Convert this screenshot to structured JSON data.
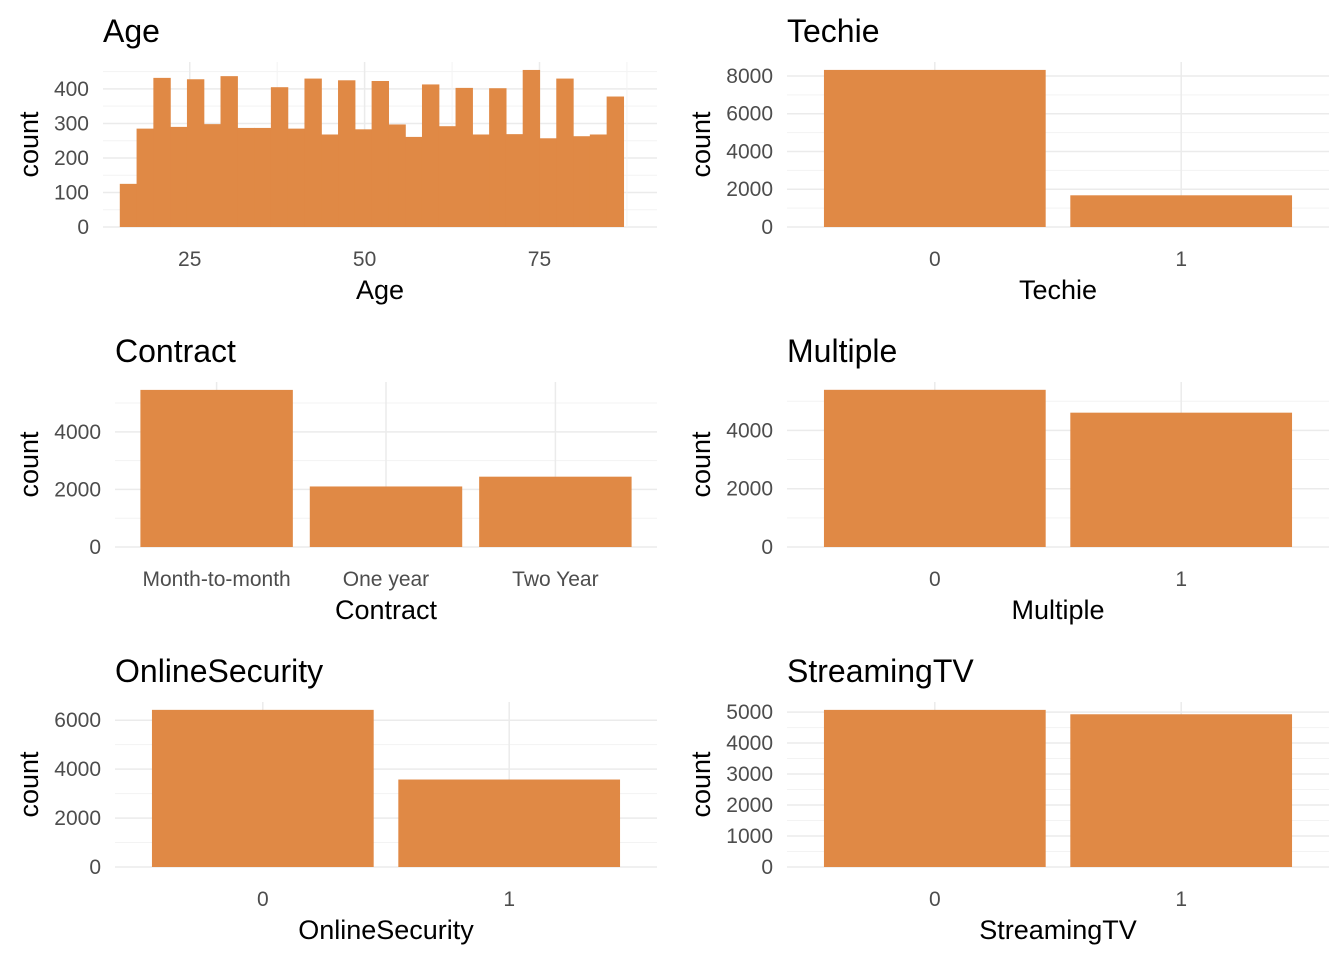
{
  "colors": {
    "bar": "#E08945",
    "grid_major": "#EBEBEB",
    "grid_minor": "#F3F3F3",
    "tick_text": "#4D4D4D",
    "text": "#000000"
  },
  "chart_data": [
    {
      "type": "bar",
      "title": "Age",
      "xlabel": "Age",
      "ylabel": "count",
      "binwidth": 2.4,
      "x": [
        16.2,
        18.6,
        21.0,
        23.4,
        25.8,
        28.2,
        30.6,
        33.0,
        35.4,
        37.8,
        40.2,
        42.6,
        45.0,
        47.4,
        49.8,
        52.2,
        54.6,
        57.0,
        59.4,
        61.8,
        64.2,
        66.6,
        69.0,
        71.4,
        73.8,
        76.2,
        78.6,
        81.0,
        83.4,
        85.8,
        88.2
      ],
      "values": [
        125,
        285,
        432,
        290,
        428,
        298,
        437,
        287,
        287,
        405,
        285,
        430,
        268,
        425,
        283,
        423,
        297,
        261,
        413,
        292,
        403,
        268,
        402,
        269,
        455,
        257,
        430,
        263,
        268,
        378,
        0
      ],
      "xticks": [
        25,
        50,
        75
      ],
      "xtick_labels": [
        "25",
        "50",
        "75"
      ],
      "yticks": [
        0,
        100,
        200,
        300,
        400
      ],
      "ytick_labels": [
        "0",
        "100",
        "200",
        "300",
        "400"
      ],
      "xlim": [
        12.6,
        91.8
      ],
      "ylim": [
        0,
        478
      ]
    },
    {
      "type": "bar",
      "title": "Techie",
      "xlabel": "Techie",
      "ylabel": "count",
      "categories": [
        "0",
        "1"
      ],
      "values": [
        8321,
        1679
      ],
      "yticks": [
        0,
        2000,
        4000,
        6000,
        8000
      ],
      "ytick_labels": [
        "0",
        "2000",
        "4000",
        "6000",
        "8000"
      ],
      "ylim": [
        0,
        8740
      ]
    },
    {
      "type": "bar",
      "title": "Contract",
      "xlabel": "Contract",
      "ylabel": "count",
      "categories": [
        "Month-to-month",
        "One year",
        "Two Year"
      ],
      "values": [
        5456,
        2102,
        2442
      ],
      "yticks": [
        0,
        2000,
        4000
      ],
      "ytick_labels": [
        "0",
        "2000",
        "4000"
      ],
      "ylim": [
        0,
        5730
      ]
    },
    {
      "type": "bar",
      "title": "Multiple",
      "xlabel": "Multiple",
      "ylabel": "count",
      "categories": [
        "0",
        "1"
      ],
      "values": [
        5392,
        4608
      ],
      "yticks": [
        0,
        2000,
        4000
      ],
      "ytick_labels": [
        "0",
        "2000",
        "4000"
      ],
      "ylim": [
        0,
        5660
      ]
    },
    {
      "type": "bar",
      "title": "OnlineSecurity",
      "xlabel": "OnlineSecurity",
      "ylabel": "count",
      "categories": [
        "0",
        "1"
      ],
      "values": [
        6424,
        3576
      ],
      "yticks": [
        0,
        2000,
        4000,
        6000
      ],
      "ytick_labels": [
        "0",
        "2000",
        "4000",
        "6000"
      ],
      "ylim": [
        0,
        6745
      ]
    },
    {
      "type": "bar",
      "title": "StreamingTV",
      "xlabel": "StreamingTV",
      "ylabel": "count",
      "categories": [
        "0",
        "1"
      ],
      "values": [
        5071,
        4929
      ],
      "yticks": [
        0,
        1000,
        2000,
        3000,
        4000,
        5000
      ],
      "ytick_labels": [
        "0",
        "1000",
        "2000",
        "3000",
        "4000",
        "5000"
      ],
      "ylim": [
        0,
        5325
      ]
    }
  ]
}
